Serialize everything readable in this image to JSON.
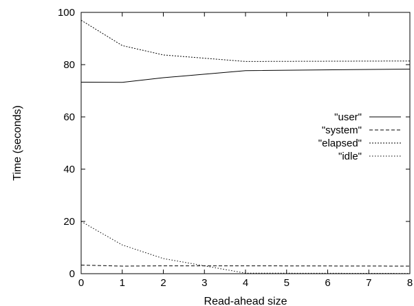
{
  "chart_data": {
    "type": "line",
    "title": "",
    "xlabel": "Read-ahead size",
    "ylabel": "Time (seconds)",
    "xlim": [
      0,
      8
    ],
    "ylim": [
      0,
      100
    ],
    "x_ticks": [
      "0",
      "1",
      "2",
      "3",
      "4",
      "5",
      "6",
      "7",
      "8"
    ],
    "y_ticks": [
      "0",
      "20",
      "40",
      "60",
      "80",
      "100"
    ],
    "grid": false,
    "legend_position": "right",
    "x": [
      0,
      1,
      2,
      4,
      8
    ],
    "series": [
      {
        "name": "\"user\"",
        "values": [
          73.3,
          73.2,
          75.0,
          77.7,
          78.3
        ],
        "dash": "solid"
      },
      {
        "name": "\"system\"",
        "values": [
          3.3,
          2.9,
          3.0,
          3.0,
          2.9
        ],
        "dash": "dashed"
      },
      {
        "name": "\"elapsed\"",
        "values": [
          97.0,
          87.3,
          83.7,
          81.2,
          81.4
        ],
        "dash": "dotted"
      },
      {
        "name": "\"idle\"",
        "values": [
          20.0,
          11.0,
          5.8,
          0.2,
          0.1
        ],
        "dash": "dotted-sparse"
      }
    ]
  }
}
